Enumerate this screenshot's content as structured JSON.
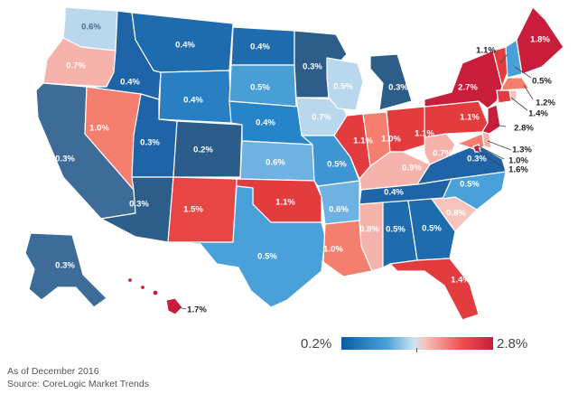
{
  "legend": {
    "min": "0.2%",
    "max": "2.8%"
  },
  "footnotes": {
    "date": "As of December 2016",
    "source": "Source: CoreLogic Market Trends"
  },
  "colors": {
    "low": "#0a5ca6",
    "mid_low": "#cfe4f2",
    "mid_high": "#f6c3bd",
    "high": "#c81e3c"
  },
  "map_data": {
    "type": "choropleth",
    "scale": [
      0.2,
      2.8
    ],
    "states": [
      {
        "code": "WA",
        "value": "0.6%"
      },
      {
        "code": "OR",
        "value": "0.7%"
      },
      {
        "code": "CA",
        "value": "0.3%"
      },
      {
        "code": "NV",
        "value": "1.0%"
      },
      {
        "code": "ID",
        "value": "0.4%"
      },
      {
        "code": "MT",
        "value": "0.4%"
      },
      {
        "code": "WY",
        "value": "0.4%"
      },
      {
        "code": "UT",
        "value": "0.3%"
      },
      {
        "code": "AZ",
        "value": "0.3%"
      },
      {
        "code": "CO",
        "value": "0.2%"
      },
      {
        "code": "NM",
        "value": "1.5%"
      },
      {
        "code": "ND",
        "value": "0.4%"
      },
      {
        "code": "SD",
        "value": "0.5%"
      },
      {
        "code": "NE",
        "value": "0.4%"
      },
      {
        "code": "KS",
        "value": "0.6%"
      },
      {
        "code": "OK",
        "value": "1.1%"
      },
      {
        "code": "TX",
        "value": "0.5%"
      },
      {
        "code": "MN",
        "value": "0.3%"
      },
      {
        "code": "IA",
        "value": "0.7%"
      },
      {
        "code": "MO",
        "value": "0.5%"
      },
      {
        "code": "AR",
        "value": "0.6%"
      },
      {
        "code": "LA",
        "value": "1.0%"
      },
      {
        "code": "WI",
        "value": "0.5%"
      },
      {
        "code": "IL",
        "value": "1.1%"
      },
      {
        "code": "MI",
        "value": "0.3%"
      },
      {
        "code": "IN",
        "value": "1.0%"
      },
      {
        "code": "OH",
        "value": "1.1%"
      },
      {
        "code": "KY",
        "value": "0.9%"
      },
      {
        "code": "TN",
        "value": "0.4%"
      },
      {
        "code": "MS",
        "value": "0.8%"
      },
      {
        "code": "AL",
        "value": "0.5%"
      },
      {
        "code": "GA",
        "value": "0.5%"
      },
      {
        "code": "FL",
        "value": "1.4%"
      },
      {
        "code": "SC",
        "value": "0.8%"
      },
      {
        "code": "NC",
        "value": "0.5%"
      },
      {
        "code": "VA",
        "value": "0.3%"
      },
      {
        "code": "WV",
        "value": "0.7%"
      },
      {
        "code": "PA",
        "value": "1.1%"
      },
      {
        "code": "NY",
        "value": "2.7%"
      },
      {
        "code": "VT",
        "value": "1.1%"
      },
      {
        "code": "NH",
        "value": "0.5%"
      },
      {
        "code": "ME",
        "value": "1.8%"
      },
      {
        "code": "MA",
        "value": "1.2%"
      },
      {
        "code": "CT",
        "value": "1.4%"
      },
      {
        "code": "NJ",
        "value": "2.8%"
      },
      {
        "code": "DE",
        "value": "1.3%"
      },
      {
        "code": "MD",
        "value": "1.0%"
      },
      {
        "code": "DC",
        "value": "1.6%"
      },
      {
        "code": "AK",
        "value": "0.3%"
      },
      {
        "code": "HI",
        "value": "1.7%"
      }
    ]
  }
}
